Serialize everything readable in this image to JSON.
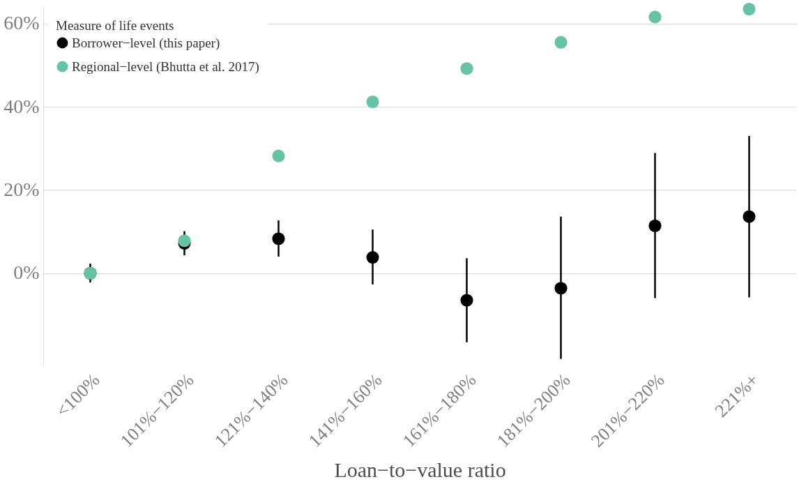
{
  "chart_data": {
    "type": "scatter",
    "xlabel": "Loan−to−value ratio",
    "legend_title": "Measure of life events",
    "categories": [
      "<100%",
      "101%−120%",
      "121%−140%",
      "141%−160%",
      "161%−180%",
      "181%−200%",
      "201%−220%",
      "221%+"
    ],
    "series": [
      {
        "name": "Borrower−level (this paper)",
        "color": "#000000",
        "values": [
          0,
          7.2,
          8.3,
          3.8,
          -6.5,
          -3.6,
          11.4,
          13.6
        ],
        "errors": [
          [
            -2.2,
            2.3
          ],
          [
            4.3,
            10.1
          ],
          [
            4.0,
            12.7
          ],
          [
            -2.7,
            10.5
          ],
          [
            -16.6,
            3.6
          ],
          [
            -20.6,
            13.6
          ],
          [
            -6.0,
            28.9
          ],
          [
            -5.8,
            33.0
          ]
        ]
      },
      {
        "name": "Regional−level (Bhutta et al. 2017)",
        "color": "#66c2a5",
        "values": [
          0,
          7.8,
          28.2,
          41.2,
          49.2,
          55.5,
          61.6,
          63.5
        ]
      }
    ],
    "ylim": [
      -22,
      64
    ],
    "yticks": [
      {
        "value": 0,
        "label": "0%"
      },
      {
        "value": 20,
        "label": "20%"
      },
      {
        "value": 40,
        "label": "40%"
      },
      {
        "value": 60,
        "label": "60%"
      }
    ],
    "grid": "y",
    "legend": "top left",
    "marker": "circle"
  }
}
